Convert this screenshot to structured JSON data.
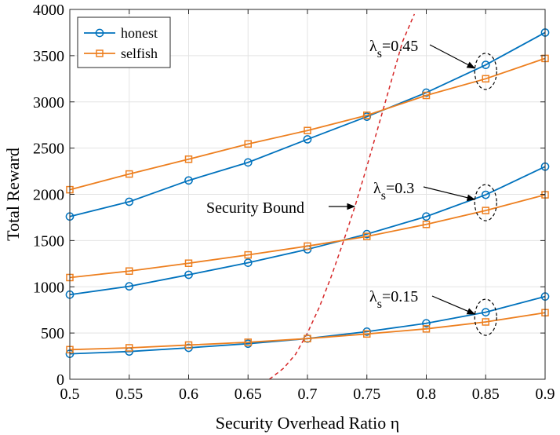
{
  "chart_data": {
    "type": "line",
    "xlabel": "Security Overhead Ratio η",
    "ylabel": "Total Reward",
    "xlim": [
      0.5,
      0.9
    ],
    "ylim": [
      0,
      4000
    ],
    "grid": true,
    "legend_position": "top-left",
    "x": [
      0.5,
      0.55,
      0.6,
      0.65,
      0.7,
      0.75,
      0.8,
      0.85,
      0.9
    ],
    "x_tick_labels": [
      "0.5",
      "0.55",
      "0.6",
      "0.65",
      "0.7",
      "0.75",
      "0.8",
      "0.85",
      "0.9"
    ],
    "y_ticks": [
      0,
      500,
      1000,
      1500,
      2000,
      2500,
      3000,
      3500,
      4000
    ],
    "y_tick_labels": [
      "0",
      "500",
      "1000",
      "1500",
      "2000",
      "2500",
      "3000",
      "3500",
      "4000"
    ],
    "legend": [
      {
        "label": "honest",
        "color": "#0072BD",
        "marker": "circle"
      },
      {
        "label": "selfish",
        "color": "#ED7F1F",
        "marker": "square"
      }
    ],
    "series": [
      {
        "name": "honest",
        "group": "λs=0.45",
        "color": "#0072BD",
        "marker": "circle",
        "values": [
          1760,
          1920,
          2150,
          2345,
          2595,
          2840,
          3100,
          3400,
          3750
        ]
      },
      {
        "name": "selfish",
        "group": "λs=0.45",
        "color": "#ED7F1F",
        "marker": "square",
        "values": [
          2050,
          2220,
          2380,
          2545,
          2690,
          2855,
          3070,
          3250,
          3470
        ]
      },
      {
        "name": "honest",
        "group": "λs=0.3",
        "color": "#0072BD",
        "marker": "circle",
        "values": [
          915,
          1005,
          1130,
          1260,
          1405,
          1570,
          1760,
          1995,
          2300
        ]
      },
      {
        "name": "selfish",
        "group": "λs=0.3",
        "color": "#ED7F1F",
        "marker": "square",
        "values": [
          1100,
          1170,
          1255,
          1345,
          1440,
          1545,
          1675,
          1825,
          1995
        ]
      },
      {
        "name": "honest",
        "group": "λs=0.15",
        "color": "#0072BD",
        "marker": "circle",
        "values": [
          275,
          300,
          340,
          385,
          440,
          515,
          605,
          725,
          895
        ]
      },
      {
        "name": "selfish",
        "group": "λs=0.15",
        "color": "#ED7F1F",
        "marker": "square",
        "values": [
          320,
          340,
          370,
          400,
          440,
          490,
          545,
          620,
          720
        ]
      }
    ],
    "security_bound": {
      "label": "Security Bound",
      "color": "#D62728",
      "style": "dashed",
      "x": [
        0.668,
        0.68,
        0.69,
        0.7,
        0.71,
        0.72,
        0.73,
        0.74,
        0.75,
        0.76,
        0.77,
        0.78,
        0.79
      ],
      "y": [
        0,
        120,
        270,
        500,
        780,
        1110,
        1480,
        1870,
        2300,
        2750,
        3200,
        3650,
        3950
      ]
    },
    "annotations": [
      {
        "symbol": "λ",
        "subscript": "s",
        "value_text": "=0.45",
        "x": 0.85,
        "y": 3330
      },
      {
        "symbol": "λ",
        "subscript": "s",
        "value_text": "=0.3",
        "x": 0.85,
        "y": 1910
      },
      {
        "symbol": "λ",
        "subscript": "s",
        "value_text": "=0.15",
        "x": 0.85,
        "y": 670
      }
    ]
  }
}
